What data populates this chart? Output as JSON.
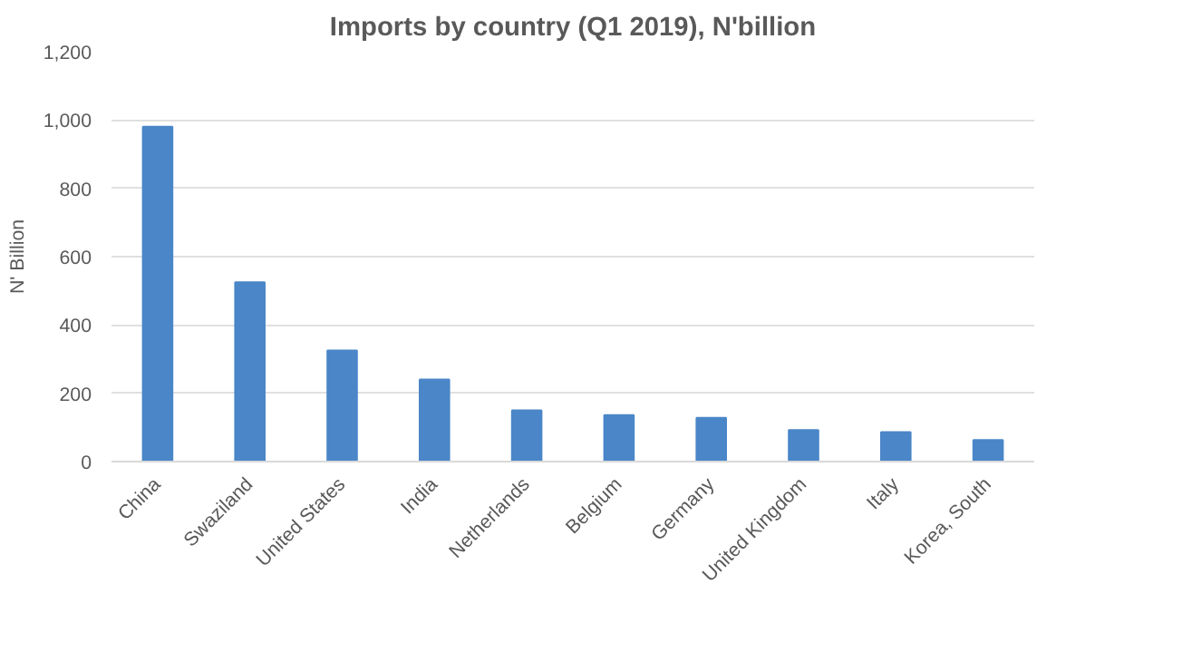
{
  "chart_data": {
    "type": "bar",
    "title": "Imports by country (Q1 2019), N'billion",
    "ylabel": "N' Billion",
    "categories": [
      "China",
      "Swaziland",
      "United States",
      "India",
      "Netherlands",
      "Belgium",
      "Germany",
      "United Kingdom",
      "Italy",
      "Korea, South"
    ],
    "values": [
      980,
      525,
      325,
      240,
      150,
      136,
      128,
      92,
      86,
      63
    ],
    "color": "#4a86c8",
    "ylim": [
      0,
      1200
    ],
    "yticks": [
      {
        "value": 0,
        "label": "0"
      },
      {
        "value": 200,
        "label": "200"
      },
      {
        "value": 400,
        "label": "400"
      },
      {
        "value": 600,
        "label": "600"
      },
      {
        "value": 800,
        "label": "800"
      },
      {
        "value": 1000,
        "label": "1,000"
      },
      {
        "value": 1200,
        "label": "1,200"
      }
    ],
    "grid": "y"
  }
}
